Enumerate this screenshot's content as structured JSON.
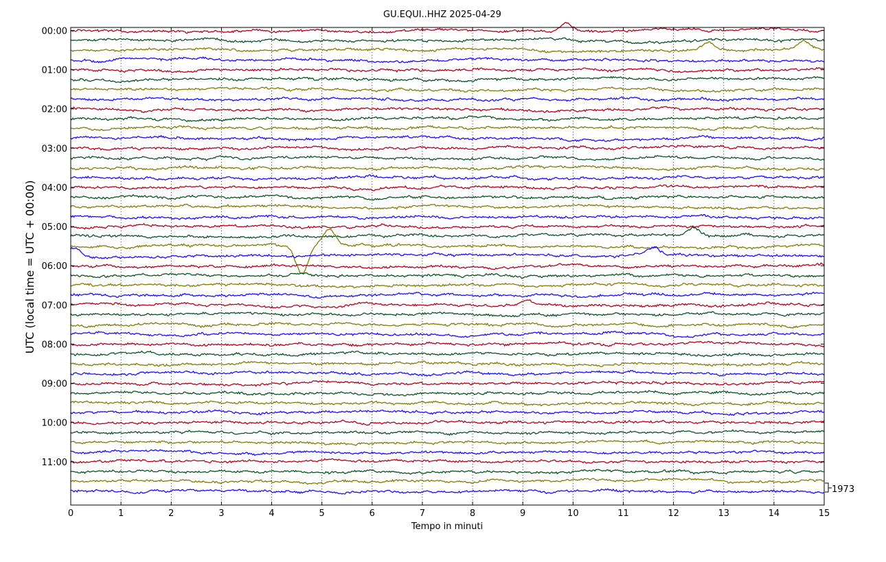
{
  "chart_data": {
    "type": "line",
    "title": "GU.EQUI..HHZ 2025-04-29",
    "xlabel": "Tempo in minuti",
    "ylabel": "UTC (local time = UTC + 00:00)",
    "xlim": [
      0,
      15
    ],
    "x_ticks": [
      "0",
      "1",
      "2",
      "3",
      "4",
      "5",
      "6",
      "7",
      "8",
      "9",
      "10",
      "11",
      "12",
      "13",
      "14",
      "15"
    ],
    "y_ticks": [
      "00:00",
      "01:00",
      "02:00",
      "03:00",
      "04:00",
      "05:00",
      "06:00",
      "07:00",
      "08:00",
      "09:00",
      "10:00",
      "11:00"
    ],
    "trace_count": 48,
    "trace_interval_minutes": 15,
    "trace_colors": [
      "#b2001c",
      "#0a5220",
      "#857a00",
      "#1a0aff"
    ],
    "grid": "vertical dotted at each minute",
    "scale_annotation": "1973",
    "events": [
      {
        "trace": 0,
        "minute": 9.85,
        "amplitude": 0.9
      },
      {
        "trace": 2,
        "minute": 12.7,
        "amplitude": 0.9
      },
      {
        "trace": 2,
        "minute": 14.6,
        "amplitude": 1.0
      },
      {
        "trace": 21,
        "minute": 12.4,
        "amplitude": 0.8
      },
      {
        "trace": 22,
        "minute": 4.6,
        "amplitude": -3.0
      },
      {
        "trace": 22,
        "minute": 5.15,
        "amplitude": 1.6
      },
      {
        "trace": 23,
        "minute": 0.05,
        "amplitude": 0.8
      },
      {
        "trace": 23,
        "minute": 11.6,
        "amplitude": 0.7
      },
      {
        "trace": 28,
        "minute": 9.1,
        "amplitude": 0.6
      }
    ]
  }
}
